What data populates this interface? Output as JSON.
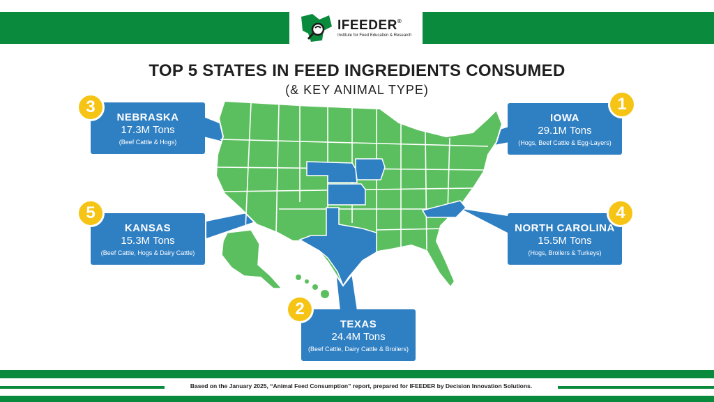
{
  "brand": {
    "name": "IFEEDER",
    "registered": "®",
    "tagline": "Institute for Feed Education & Research"
  },
  "title": "TOP 5 STATES IN FEED INGREDIENTS CONSUMED",
  "subtitle": "(& KEY ANIMAL TYPE)",
  "colors": {
    "green": "#0a8a3c",
    "map_green": "#5cbf5f",
    "highlight_blue": "#2f7fc3",
    "badge_yellow": "#f6c415"
  },
  "states": [
    {
      "rank": "3",
      "name": "NEBRASKA",
      "tons": "17.3M Tons",
      "animals": "(Beef Cattle & Hogs)"
    },
    {
      "rank": "1",
      "name": "IOWA",
      "tons": "29.1M Tons",
      "animals": "(Hogs, Beef Cattle & Egg-Layers)"
    },
    {
      "rank": "5",
      "name": "KANSAS",
      "tons": "15.3M Tons",
      "animals": "(Beef Cattle, Hogs & Dairy Cattle)"
    },
    {
      "rank": "4",
      "name": "NORTH CAROLINA",
      "tons": "15.5M Tons",
      "animals": "(Hogs, Broilers & Turkeys)"
    },
    {
      "rank": "2",
      "name": "TEXAS",
      "tons": "24.4M Tons",
      "animals": "(Beef Cattle, Dairy Cattle & Broilers)"
    }
  ],
  "footnote": "Based on the January 2025, “Animal Feed Consumption” report, prepared for IFEEDER by Decision Innovation Solutions."
}
